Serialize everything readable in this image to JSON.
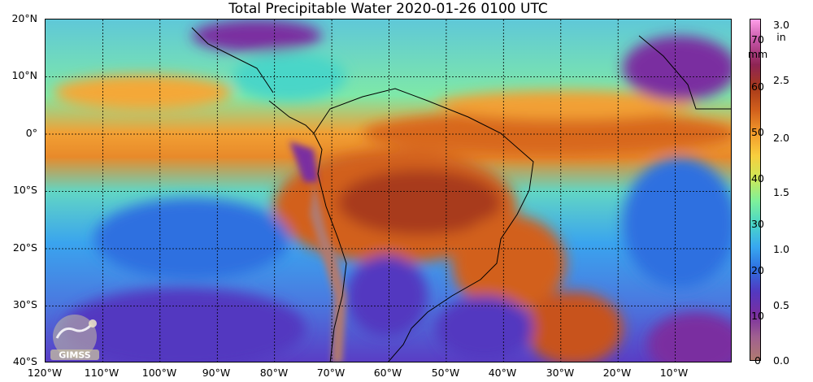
{
  "title": "Total Precipitable Water  2020-01-26 0100 UTC",
  "axes": {
    "lat_labels": [
      "20°N",
      "10°N",
      "0°",
      "10°S",
      "20°S",
      "30°S",
      "40°S"
    ],
    "lon_labels": [
      "120°W",
      "110°W",
      "100°W",
      "90°W",
      "80°W",
      "70°W",
      "60°W",
      "50°W",
      "40°W",
      "30°W",
      "20°W",
      "10°W"
    ]
  },
  "colorbar": {
    "mm_unit": "mm",
    "mm_ticks": [
      "70",
      "60",
      "50",
      "40",
      "30",
      "20",
      "10",
      "0"
    ],
    "in_unit": "in",
    "in_ticks": [
      "3.0",
      "2.5",
      "2.0",
      "1.5",
      "1.0",
      "0.5",
      "0.0"
    ],
    "colors": [
      "#ff9ee8",
      "#c050a0",
      "#8e2454",
      "#a83a1a",
      "#d2601c",
      "#f29a2c",
      "#f8cf3e",
      "#cde858",
      "#7ef09a",
      "#4ad6c8",
      "#38a8f0",
      "#2f6fe0",
      "#5338c0",
      "#7a2fa0",
      "#a06090",
      "#b07a70"
    ]
  },
  "logo": {
    "text": "GIMSS",
    "accent": "#c8c0a0"
  },
  "palette": {
    "ocean_low": "#38a8f0",
    "ocean_mid": "#4ad6c8",
    "itcz": "#d2601c",
    "amazon": "#8e2454",
    "dry": "#7a2fa0",
    "andes": "#b07a70"
  }
}
